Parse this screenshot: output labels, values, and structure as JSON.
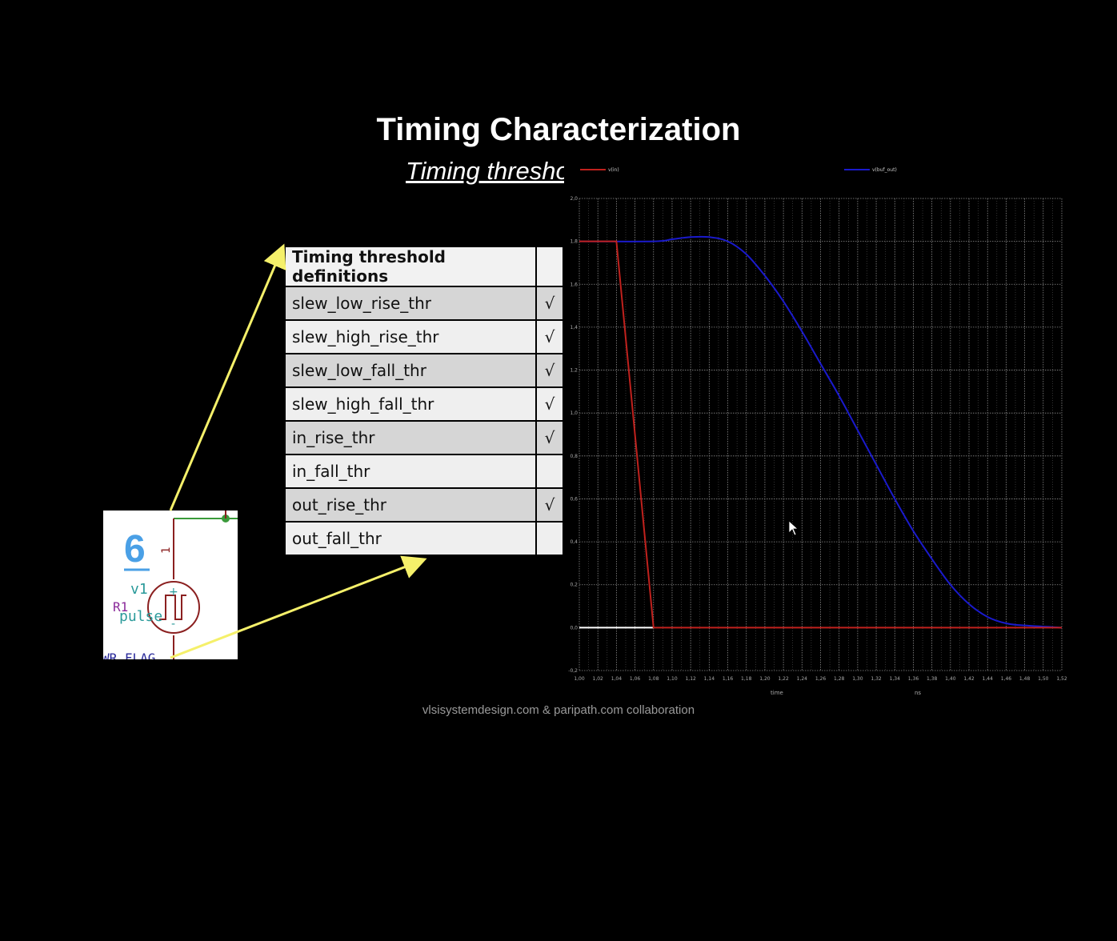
{
  "slide": {
    "title": "Timing Characterization",
    "subtitle": "Timing threshold",
    "footer": "vlsisystemdesign.com & paripath.com collaboration"
  },
  "threshold_table": {
    "header": "Timing threshold definitions",
    "rows": [
      {
        "name": "slew_low_rise_thr",
        "check": "√"
      },
      {
        "name": "slew_high_rise_thr",
        "check": "√"
      },
      {
        "name": "slew_low_fall_thr",
        "check": "√"
      },
      {
        "name": "slew_high_fall_thr",
        "check": "√"
      },
      {
        "name": "in_rise_thr",
        "check": "√"
      },
      {
        "name": "in_fall_thr",
        "check": ""
      },
      {
        "name": "out_rise_thr",
        "check": "√"
      },
      {
        "name": "out_fall_thr",
        "check": ""
      }
    ]
  },
  "schematic": {
    "number": "6",
    "source_name": "v1",
    "resistor": "R1",
    "source_type": "pulse",
    "flag": "WR_FLAG",
    "pin": "1",
    "plus": "+",
    "minus": "-"
  },
  "chart_data": {
    "type": "line",
    "xlabel": "time",
    "xunit": "ns",
    "xlim": [
      1.0,
      1.52
    ],
    "ylim": [
      -0.2,
      2.0
    ],
    "x_ticks": [
      "1,00",
      "1,02",
      "1,04",
      "1,06",
      "1,08",
      "1,10",
      "1,12",
      "1,14",
      "1,16",
      "1,18",
      "1,20",
      "1,22",
      "1,24",
      "1,26",
      "1,28",
      "1,30",
      "1,32",
      "1,34",
      "1,36",
      "1,38",
      "1,40",
      "1,42",
      "1,44",
      "1,46",
      "1,48",
      "1,50",
      "1,52"
    ],
    "y_ticks": [
      "-0,2",
      "0,0",
      "0,2",
      "0,4",
      "0,6",
      "0,8",
      "1,0",
      "1,2",
      "1,4",
      "1,6",
      "1,8",
      "2,0"
    ],
    "grid": true,
    "legend": "top",
    "series": [
      {
        "name": "v(in)",
        "color": "#c0211d",
        "x": [
          1.0,
          1.04,
          1.08,
          1.52
        ],
        "y": [
          1.8,
          1.8,
          0.0,
          0.0
        ]
      },
      {
        "name": "v(buf_out)",
        "color": "#1a1acc",
        "x": [
          1.0,
          1.08,
          1.1,
          1.12,
          1.14,
          1.16,
          1.18,
          1.2,
          1.22,
          1.24,
          1.26,
          1.28,
          1.3,
          1.32,
          1.34,
          1.36,
          1.38,
          1.4,
          1.42,
          1.44,
          1.46,
          1.48,
          1.52
        ],
        "y": [
          1.8,
          1.8,
          1.81,
          1.82,
          1.82,
          1.8,
          1.74,
          1.64,
          1.52,
          1.38,
          1.23,
          1.08,
          0.92,
          0.76,
          0.6,
          0.45,
          0.32,
          0.2,
          0.11,
          0.05,
          0.02,
          0.01,
          0.0
        ]
      }
    ]
  }
}
